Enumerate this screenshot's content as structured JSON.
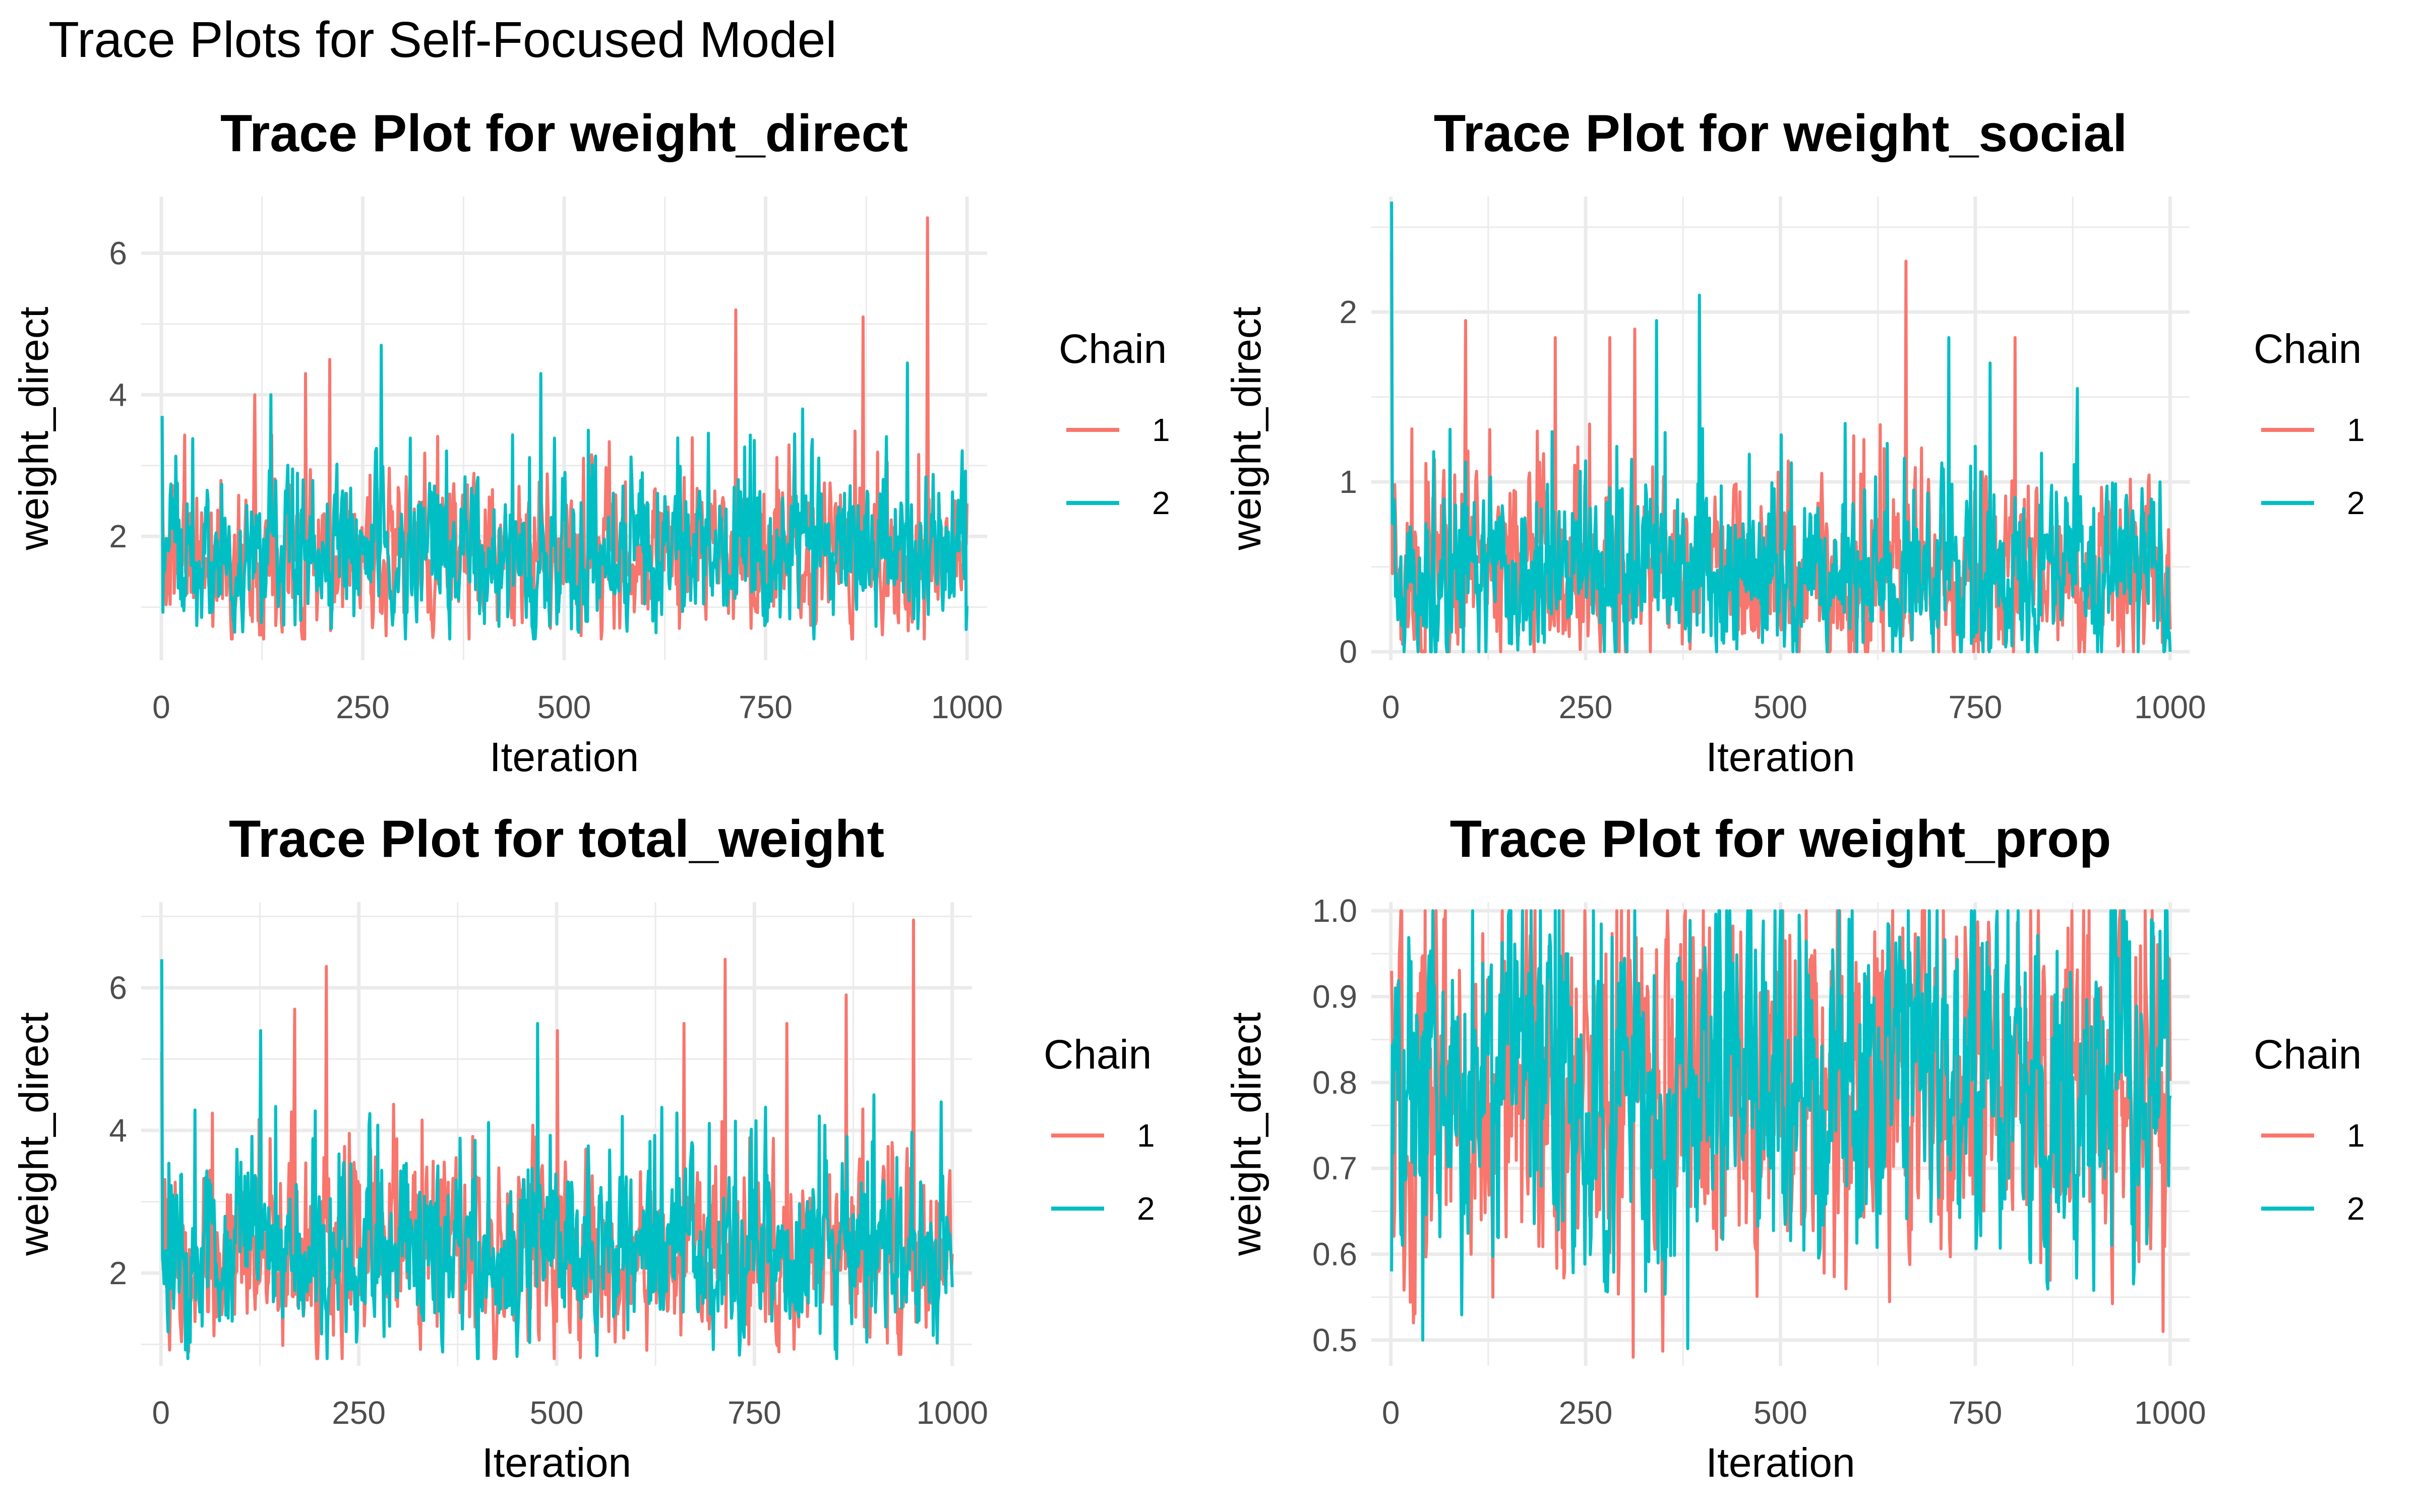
{
  "figure_title": "Trace Plots for Self-Focused Model",
  "legend": {
    "title": "Chain",
    "labels": [
      "1",
      "2"
    ]
  },
  "colors": {
    "chain1": "#F8766D",
    "chain2": "#00BFC4",
    "grid": "#EBEBEB",
    "tick_text": "#4D4D4D"
  },
  "chart_data": [
    {
      "type": "line",
      "title": "Trace Plot for weight_direct",
      "xlabel": "Iteration",
      "ylabel": "weight_direct",
      "xlim": [
        -25,
        1025
      ],
      "ylim": [
        0.25,
        6.8
      ],
      "x_ticks": [
        0,
        250,
        500,
        750,
        1000
      ],
      "y_ticks": [
        2,
        4,
        6
      ],
      "trace": {
        "n": 1000,
        "center": 1.75,
        "spread": 0.5,
        "min": 0.55,
        "max": 6.5
      },
      "series": [
        {
          "name": "1",
          "seed": 11,
          "start": 3.7,
          "spikes": [
            [
              115,
              4.0
            ],
            [
              178,
              4.3
            ],
            [
              208,
              4.5
            ],
            [
              712,
              5.2
            ],
            [
              870,
              5.1
            ],
            [
              950,
              6.5
            ],
            [
              946,
              0.55
            ]
          ]
        },
        {
          "name": "2",
          "seed": 23,
          "start": 3.7,
          "spikes": [
            [
              135,
              4.0
            ],
            [
              272,
              4.7
            ],
            [
              470,
              4.3
            ],
            [
              795,
              3.8
            ],
            [
              925,
              4.45
            ]
          ]
        }
      ]
    },
    {
      "type": "line",
      "title": "Trace Plot for weight_social",
      "xlabel": "Iteration",
      "ylabel": "weight_direct",
      "xlim": [
        -25,
        1025
      ],
      "ylim": [
        -0.05,
        2.68
      ],
      "x_ticks": [
        0,
        250,
        500,
        750,
        1000
      ],
      "y_ticks": [
        0,
        1,
        2
      ],
      "trace": {
        "n": 1000,
        "center": 0.45,
        "spread": 0.25,
        "min": 0.0,
        "max": 2.7
      },
      "series": [
        {
          "name": "1",
          "seed": 37,
          "start": 2.35,
          "spikes": [
            [
              95,
              1.95
            ],
            [
              210,
              1.85
            ],
            [
              280,
              1.85
            ],
            [
              312,
              1.9
            ],
            [
              660,
              2.3
            ],
            [
              680,
              1.2
            ],
            [
              800,
              1.85
            ]
          ]
        },
        {
          "name": "2",
          "seed": 41,
          "start": 2.65,
          "spikes": [
            [
              340,
              1.95
            ],
            [
              395,
              2.1
            ],
            [
              715,
              1.85
            ],
            [
              768,
              1.7
            ],
            [
              880,
              1.55
            ]
          ]
        }
      ]
    },
    {
      "type": "line",
      "title": "Trace Plot for total_weight",
      "xlabel": "Iteration",
      "ylabel": "weight_direct",
      "xlim": [
        -25,
        1025
      ],
      "ylim": [
        0.7,
        7.2
      ],
      "x_ticks": [
        0,
        250,
        500,
        750,
        1000
      ],
      "y_ticks": [
        2,
        4,
        6
      ],
      "trace": {
        "n": 1000,
        "center": 2.25,
        "spread": 0.6,
        "min": 0.8,
        "max": 7.0
      },
      "series": [
        {
          "name": "1",
          "seed": 53,
          "start": 5.1,
          "spikes": [
            [
              168,
              5.7
            ],
            [
              208,
              6.3
            ],
            [
              500,
              5.4
            ],
            [
              660,
              5.5
            ],
            [
              712,
              6.4
            ],
            [
              790,
              5.5
            ],
            [
              865,
              5.9
            ],
            [
              950,
              6.95
            ]
          ]
        },
        {
          "name": "2",
          "seed": 67,
          "start": 6.4,
          "spikes": [
            [
              125,
              5.4
            ],
            [
              475,
              5.5
            ],
            [
              900,
              4.5
            ],
            [
              985,
              4.4
            ]
          ]
        }
      ]
    },
    {
      "type": "line",
      "title": "Trace Plot for weight_prop",
      "xlabel": "Iteration",
      "ylabel": "weight_direct",
      "xlim": [
        -25,
        1025
      ],
      "ylim": [
        0.47,
        1.01
      ],
      "x_ticks": [
        0,
        250,
        500,
        750,
        1000
      ],
      "y_ticks": [
        0.5,
        0.6,
        0.7,
        0.8,
        0.9,
        1.0
      ],
      "trace": {
        "n": 1000,
        "center": 0.79,
        "spread": 0.1,
        "min": 0.48,
        "max": 1.0
      },
      "series": [
        {
          "name": "1",
          "seed": 79,
          "start": 0.93,
          "spikes": [
            [
              310,
              0.48
            ],
            [
              220,
              1.0
            ],
            [
              820,
              1.0
            ],
            [
              990,
              0.51
            ],
            [
              130,
              0.55
            ]
          ]
        },
        {
          "name": "2",
          "seed": 83,
          "start": 0.58,
          "spikes": [
            [
              40,
              0.5
            ],
            [
              380,
              0.49
            ],
            [
              690,
              1.0
            ],
            [
              700,
              1.0
            ]
          ]
        }
      ]
    }
  ]
}
